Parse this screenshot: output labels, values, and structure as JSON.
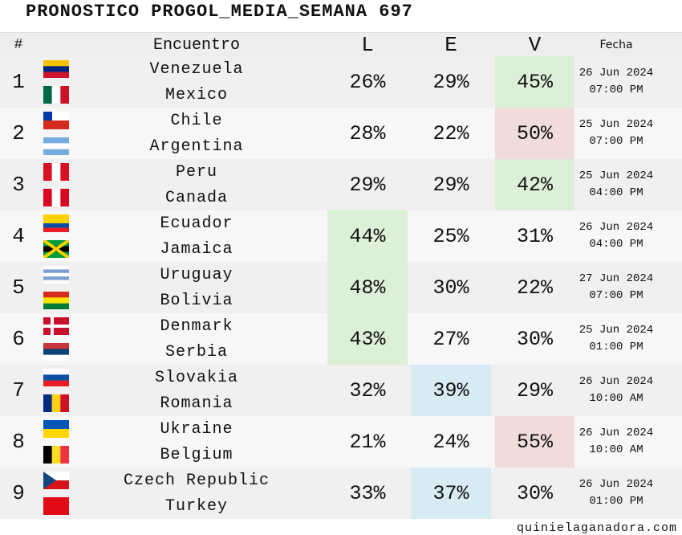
{
  "title": "PRONOSTICO PROGOL_MEDIA_SEMANA 697",
  "header": {
    "number": "#",
    "match": "Encuentro",
    "L": "L",
    "E": "E",
    "V": "V",
    "date": "Fecha"
  },
  "matches": [
    {
      "number": "1",
      "home": "Venezuela",
      "away": "Mexico",
      "probs": [
        "26%",
        "29%",
        "45%"
      ],
      "highlight": 2,
      "highlight_color": "#dcefd7",
      "date": "26 Jun 2024",
      "time": "07:00 PM"
    },
    {
      "number": "2",
      "home": "Chile",
      "away": "Argentina",
      "probs": [
        "28%",
        "22%",
        "50%"
      ],
      "highlight": 2,
      "highlight_color": "#f1dcdc",
      "date": "25 Jun 2024",
      "time": "07:00 PM"
    },
    {
      "number": "3",
      "home": "Peru",
      "away": "Canada",
      "probs": [
        "29%",
        "29%",
        "42%"
      ],
      "highlight": 2,
      "highlight_color": "#dcefd7",
      "date": "25 Jun 2024",
      "time": "04:00 PM"
    },
    {
      "number": "4",
      "home": "Ecuador",
      "away": "Jamaica",
      "probs": [
        "44%",
        "25%",
        "31%"
      ],
      "highlight": 0,
      "highlight_color": "#dcefd7",
      "date": "26 Jun 2024",
      "time": "04:00 PM"
    },
    {
      "number": "5",
      "home": "Uruguay",
      "away": "Bolivia",
      "probs": [
        "48%",
        "30%",
        "22%"
      ],
      "highlight": 0,
      "highlight_color": "#dcefd7",
      "date": "27 Jun 2024",
      "time": "07:00 PM"
    },
    {
      "number": "6",
      "home": "Denmark",
      "away": "Serbia",
      "probs": [
        "43%",
        "27%",
        "30%"
      ],
      "highlight": 0,
      "highlight_color": "#dcefd7",
      "date": "25 Jun 2024",
      "time": "01:00 PM"
    },
    {
      "number": "7",
      "home": "Slovakia",
      "away": "Romania",
      "probs": [
        "32%",
        "39%",
        "29%"
      ],
      "highlight": 1,
      "highlight_color": "#d8eaf4",
      "date": "26 Jun 2024",
      "time": "10:00 AM"
    },
    {
      "number": "8",
      "home": "Ukraine",
      "away": "Belgium",
      "probs": [
        "21%",
        "24%",
        "55%"
      ],
      "highlight": 2,
      "highlight_color": "#f1dcdc",
      "date": "26 Jun 2024",
      "time": "10:00 AM"
    },
    {
      "number": "9",
      "home": "Czech Republic",
      "away": "Turkey",
      "probs": [
        "33%",
        "37%",
        "30%"
      ],
      "highlight": 1,
      "highlight_color": "#d8eaf4",
      "date": "26 Jun 2024",
      "time": "01:00 PM"
    }
  ],
  "footer": "quinielaganadora.com"
}
